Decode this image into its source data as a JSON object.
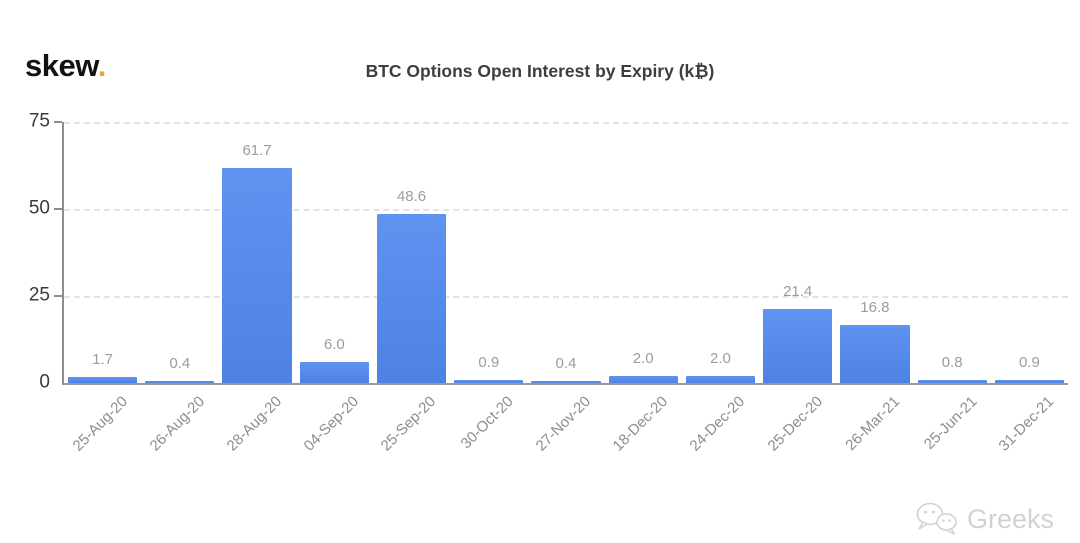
{
  "logo": {
    "text": "skew",
    "dot": ".",
    "dot_color": "#e9a23c"
  },
  "watermark": {
    "label": "Greeks",
    "icon": "wechat-chat-bubbles-icon",
    "color": "#d2d2d2"
  },
  "chart_data": {
    "type": "bar",
    "title": "BTC Options Open Interest by Expiry (k₿)",
    "categories": [
      "25-Aug-20",
      "26-Aug-20",
      "28-Aug-20",
      "04-Sep-20",
      "25-Sep-20",
      "30-Oct-20",
      "27-Nov-20",
      "18-Dec-20",
      "24-Dec-20",
      "25-Dec-20",
      "26-Mar-21",
      "25-Jun-21",
      "31-Dec-21"
    ],
    "values": [
      1.7,
      0.4,
      61.7,
      6.0,
      48.6,
      0.9,
      0.4,
      2.0,
      2.0,
      21.4,
      16.8,
      0.8,
      0.9
    ],
    "value_labels": [
      "1.7",
      "0.4",
      "61.7",
      "6.0",
      "48.6",
      "0.9",
      "0.4",
      "2.0",
      "2.0",
      "21.4",
      "16.8",
      "0.8",
      "0.9"
    ],
    "xlabel": "",
    "ylabel": "",
    "ylim": [
      0,
      75
    ],
    "yticks": [
      0,
      25,
      50,
      75
    ],
    "grid": "horizontal-dashed",
    "legend": "none",
    "bar_color": "#5388e8",
    "bar_color_top": "#6093f0",
    "bar_color_bottom": "#4d82e4",
    "value_label_color": "#9c9c9c",
    "x_label_color": "#8d8d8d",
    "y_label_color": "#3a3a3a",
    "axis_color": "#8d8d8d",
    "gridline_color": "#e3e3e3",
    "x_label_rotation_deg": -45
  }
}
